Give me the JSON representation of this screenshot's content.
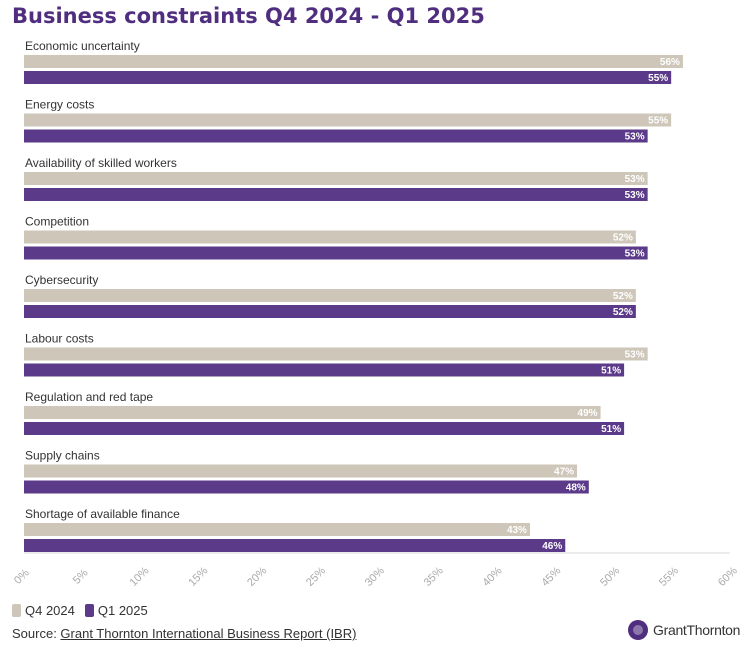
{
  "chart_data": {
    "type": "bar",
    "orientation": "horizontal",
    "title": "Business constraints Q4 2024 - Q1 2025",
    "categories": [
      "Economic uncertainty",
      "Energy costs",
      "Availability of skilled workers",
      "Competition",
      "Cybersecurity",
      "Labour costs",
      "Regulation and red tape",
      "Supply chains",
      "Shortage of available finance"
    ],
    "series": [
      {
        "name": "Q4 2024",
        "color": "#cdc6b9",
        "values": [
          56,
          55,
          53,
          52,
          52,
          53,
          49,
          47,
          43
        ]
      },
      {
        "name": "Q1 2025",
        "color": "#5b3a8a",
        "values": [
          55,
          53,
          53,
          53,
          52,
          51,
          51,
          48,
          46
        ]
      }
    ],
    "value_suffix": "%",
    "xlim": [
      0,
      60
    ],
    "xticks": [
      "0%",
      "5%",
      "10%",
      "15%",
      "20%",
      "25%",
      "30%",
      "35%",
      "40%",
      "45%",
      "50%",
      "55%",
      "60%"
    ],
    "legend_position": "bottom-left",
    "grid": false
  },
  "source": {
    "prefix": "Source: ",
    "link_text": "Grant Thornton International Business Report (IBR)"
  },
  "logo": {
    "text": "GrantThornton",
    "color": "#4f2d7f"
  }
}
